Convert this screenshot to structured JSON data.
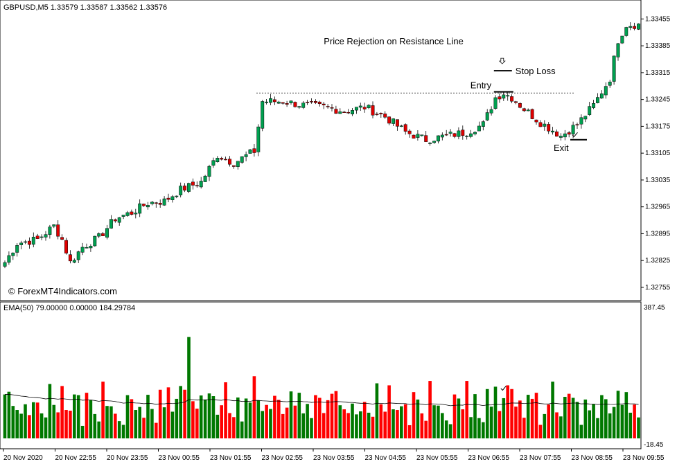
{
  "chart_data": [
    {
      "type": "candlestick",
      "symbol_header": "GBPUSD,M5  1.33579 1.33587 1.33562 1.33576",
      "title": "Price Rejection on Resistance Line",
      "watermark": "© ForexMT4Indicators.com",
      "y_ticks": [
        "1.33455",
        "1.33385",
        "1.33315",
        "1.33245",
        "1.33175",
        "1.33105",
        "1.33035",
        "1.32965",
        "1.32895",
        "1.32825",
        "1.32755"
      ],
      "ylim": [
        1.32735,
        1.3349
      ],
      "resistance_level": 1.33262,
      "annotations": {
        "entry": "Entry",
        "stop_loss": "Stop Loss",
        "exit": "Exit",
        "entry_price": 1.33265,
        "stop_price": 1.3332,
        "exit_price": 1.3314
      },
      "colors": {
        "bull": "#00a050",
        "bear": "#e00000"
      },
      "anchors": [
        [
          0,
          1.3282
        ],
        [
          3,
          1.3287
        ],
        [
          8,
          1.3288
        ],
        [
          12,
          1.32915
        ],
        [
          14,
          1.3288
        ],
        [
          16,
          1.3282
        ],
        [
          19,
          1.3286
        ],
        [
          23,
          1.32885
        ],
        [
          27,
          1.32935
        ],
        [
          31,
          1.3295
        ],
        [
          35,
          1.32975
        ],
        [
          39,
          1.3298
        ],
        [
          43,
          1.3301
        ],
        [
          48,
          1.3303
        ],
        [
          52,
          1.331
        ],
        [
          56,
          1.3308
        ],
        [
          61,
          1.3311
        ],
        [
          63,
          1.3324
        ],
        [
          68,
          1.3324
        ],
        [
          73,
          1.3323
        ],
        [
          78,
          1.33225
        ],
        [
          83,
          1.33215
        ],
        [
          88,
          1.33225
        ],
        [
          93,
          1.332
        ],
        [
          98,
          1.3316
        ],
        [
          103,
          1.3314
        ],
        [
          108,
          1.3315
        ],
        [
          113,
          1.3316
        ],
        [
          117,
          1.3318
        ],
        [
          120,
          1.3325
        ],
        [
          122,
          1.33262
        ],
        [
          124,
          1.3325
        ],
        [
          127,
          1.3322
        ],
        [
          131,
          1.33185
        ],
        [
          134,
          1.33165
        ],
        [
          136,
          1.3315
        ],
        [
          140,
          1.3318
        ],
        [
          144,
          1.3323
        ],
        [
          148,
          1.333
        ],
        [
          150,
          1.334
        ],
        [
          152,
          1.3344
        ]
      ]
    },
    {
      "type": "bar",
      "indicator_label": "EMA(50) 79.00000 0.00000 184.29784",
      "y_ticks": [
        "387.45",
        "-18.45"
      ],
      "ylim": [
        -18.45,
        387.45
      ],
      "ema_period": 50,
      "colors": {
        "up": "#007800",
        "down": "#ff0000",
        "ema": "#000000"
      },
      "volume_pattern": [
        130,
        130,
        80,
        60,
        70,
        90,
        50,
        80,
        100,
        60,
        40,
        160,
        90,
        60,
        130,
        80,
        70,
        110,
        100,
        30,
        120,
        90,
        70,
        40,
        150,
        70,
        90,
        60,
        30,
        40,
        120,
        100,
        60,
        90,
        50,
        110,
        60,
        40,
        130,
        70,
        150,
        70,
        100,
        130,
        140,
        80,
        90,
        60,
        120,
        100,
        110,
        90,
        60,
        80,
        140,
        70,
        50,
        100,
        130,
        110,
        90,
        160,
        110,
        70,
        80,
        60,
        120,
        100,
        50,
        90,
        130,
        80,
        110,
        70,
        90,
        40,
        100,
        130,
        60,
        90
      ],
      "overrides": [
        [
          45,
          300
        ],
        [
          51,
          125
        ],
        [
          58,
          50
        ],
        [
          77,
          120
        ],
        [
          97,
          95
        ],
        [
          113,
          170
        ],
        [
          131,
          40
        ],
        [
          141,
          40
        ],
        [
          154,
          100
        ]
      ]
    }
  ],
  "x_ticks": [
    "20 Nov 2020",
    "20 Nov 22:55",
    "20 Nov 23:55",
    "23 Nov 00:55",
    "23 Nov 01:55",
    "23 Nov 02:55",
    "23 Nov 03:55",
    "23 Nov 04:55",
    "23 Nov 05:55",
    "23 Nov 06:55",
    "23 Nov 07:55",
    "23 Nov 08:55",
    "23 Nov 09:55"
  ],
  "icons": {
    "stop_arrow": "down-arrow-icon",
    "checkmark": "checkmark-icon"
  }
}
